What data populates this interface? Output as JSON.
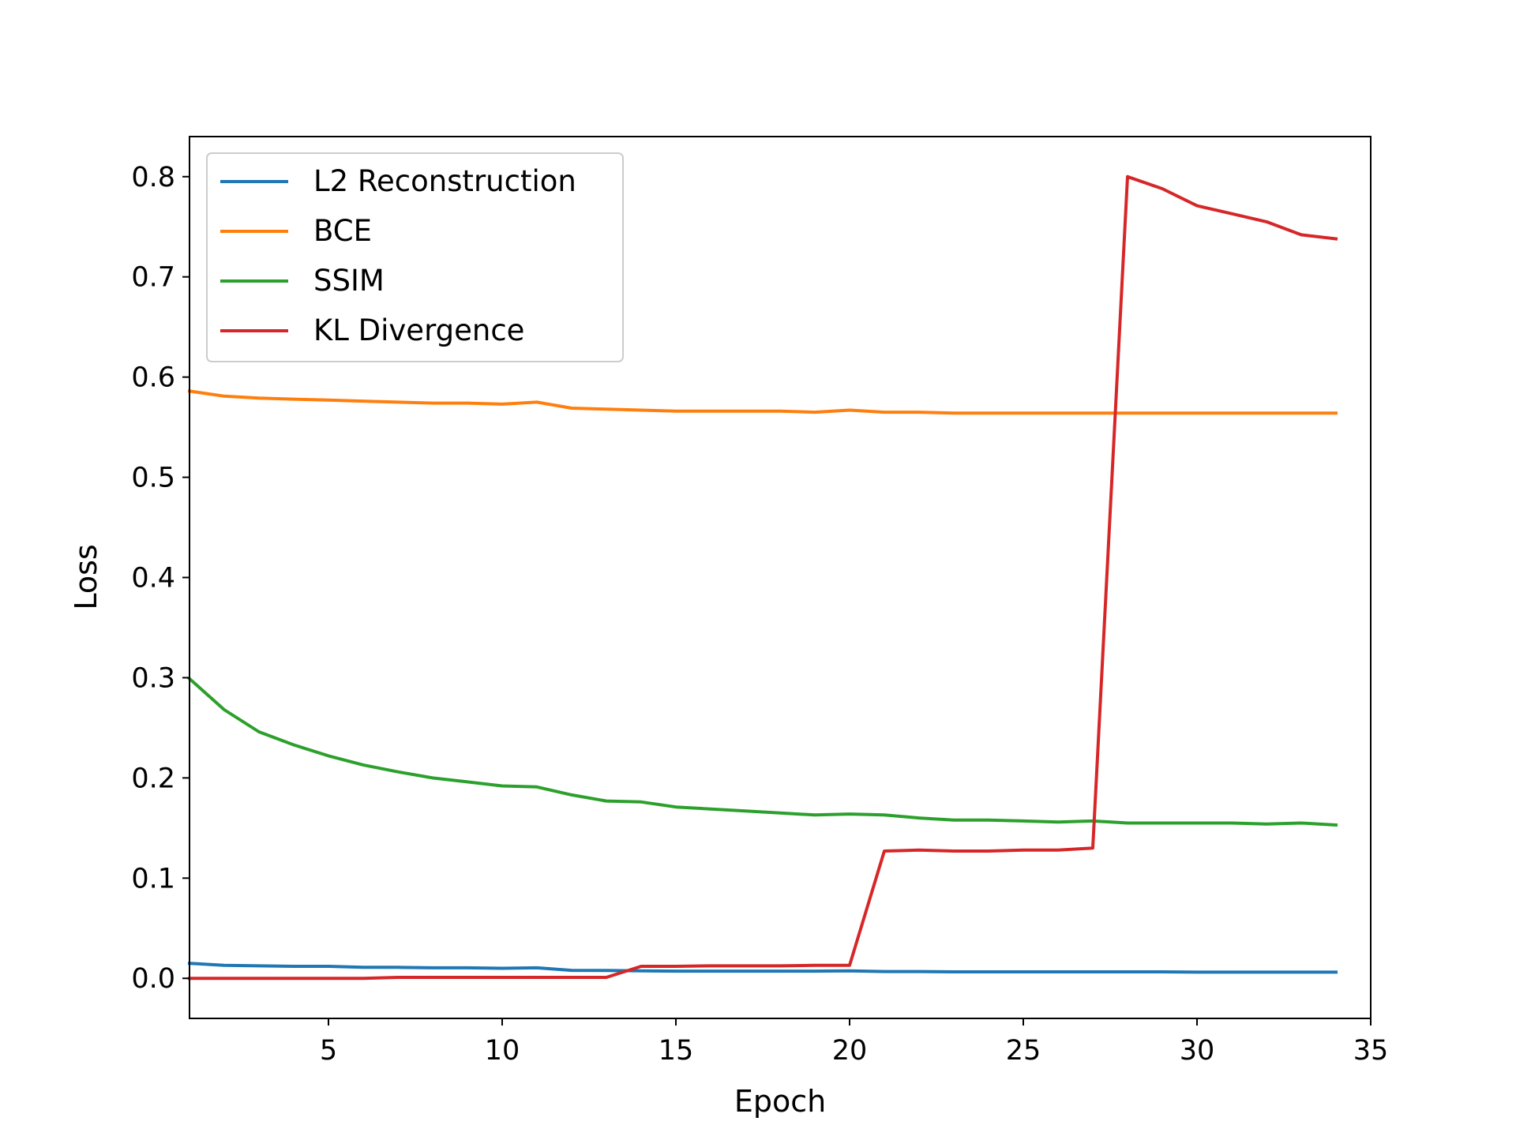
{
  "chart_data": {
    "type": "line",
    "title": "",
    "xlabel": "Epoch",
    "ylabel": "Loss",
    "xlim": [
      1,
      35
    ],
    "ylim": [
      -0.04,
      0.84
    ],
    "xticks": [
      5,
      10,
      15,
      20,
      25,
      30,
      35
    ],
    "yticks": [
      0.0,
      0.1,
      0.2,
      0.3,
      0.4,
      0.5,
      0.6,
      0.7,
      0.8
    ],
    "xtick_labels": [
      "5",
      "10",
      "15",
      "20",
      "25",
      "30",
      "35"
    ],
    "ytick_labels": [
      "0.0",
      "0.1",
      "0.2",
      "0.3",
      "0.4",
      "0.5",
      "0.6",
      "0.7",
      "0.8"
    ],
    "grid": false,
    "legend_position": "top-left",
    "x": [
      1,
      2,
      3,
      4,
      5,
      6,
      7,
      8,
      9,
      10,
      11,
      12,
      13,
      14,
      15,
      16,
      17,
      18,
      19,
      20,
      21,
      22,
      23,
      24,
      25,
      26,
      27,
      28,
      29,
      30,
      31,
      32,
      33,
      34
    ],
    "series": [
      {
        "name": "L2 Reconstruction",
        "color": "#1f77b4",
        "values": [
          0.015,
          0.013,
          0.0125,
          0.012,
          0.012,
          0.011,
          0.011,
          0.0105,
          0.0105,
          0.01,
          0.0105,
          0.008,
          0.0078,
          0.0075,
          0.0072,
          0.0072,
          0.0072,
          0.0072,
          0.0072,
          0.0075,
          0.0068,
          0.0068,
          0.0065,
          0.0065,
          0.0065,
          0.0065,
          0.0065,
          0.0065,
          0.0065,
          0.0062,
          0.0062,
          0.0062,
          0.0062,
          0.0062
        ]
      },
      {
        "name": "BCE",
        "color": "#ff7f0e",
        "values": [
          0.586,
          0.581,
          0.579,
          0.578,
          0.577,
          0.576,
          0.575,
          0.574,
          0.574,
          0.573,
          0.575,
          0.569,
          0.568,
          0.567,
          0.566,
          0.566,
          0.566,
          0.566,
          0.565,
          0.567,
          0.565,
          0.565,
          0.564,
          0.564,
          0.564,
          0.564,
          0.564,
          0.564,
          0.564,
          0.564,
          0.564,
          0.564,
          0.564,
          0.564
        ]
      },
      {
        "name": "SSIM",
        "color": "#2ca02c",
        "values": [
          0.299,
          0.268,
          0.246,
          0.233,
          0.222,
          0.213,
          0.206,
          0.2,
          0.196,
          0.192,
          0.191,
          0.183,
          0.177,
          0.176,
          0.171,
          0.169,
          0.167,
          0.165,
          0.163,
          0.164,
          0.163,
          0.16,
          0.158,
          0.158,
          0.157,
          0.156,
          0.157,
          0.155,
          0.155,
          0.155,
          0.155,
          0.154,
          0.155,
          0.153
        ]
      },
      {
        "name": "KL Divergence",
        "color": "#d62728",
        "values": [
          0.0,
          0.0,
          0.0,
          0.0,
          0.0,
          0.0,
          0.001,
          0.001,
          0.001,
          0.001,
          0.001,
          0.001,
          0.001,
          0.012,
          0.012,
          0.0125,
          0.0125,
          0.0125,
          0.013,
          0.013,
          0.127,
          0.128,
          0.127,
          0.127,
          0.128,
          0.128,
          0.13,
          0.8,
          0.788,
          0.771,
          0.763,
          0.755,
          0.742,
          0.738
        ]
      }
    ]
  }
}
